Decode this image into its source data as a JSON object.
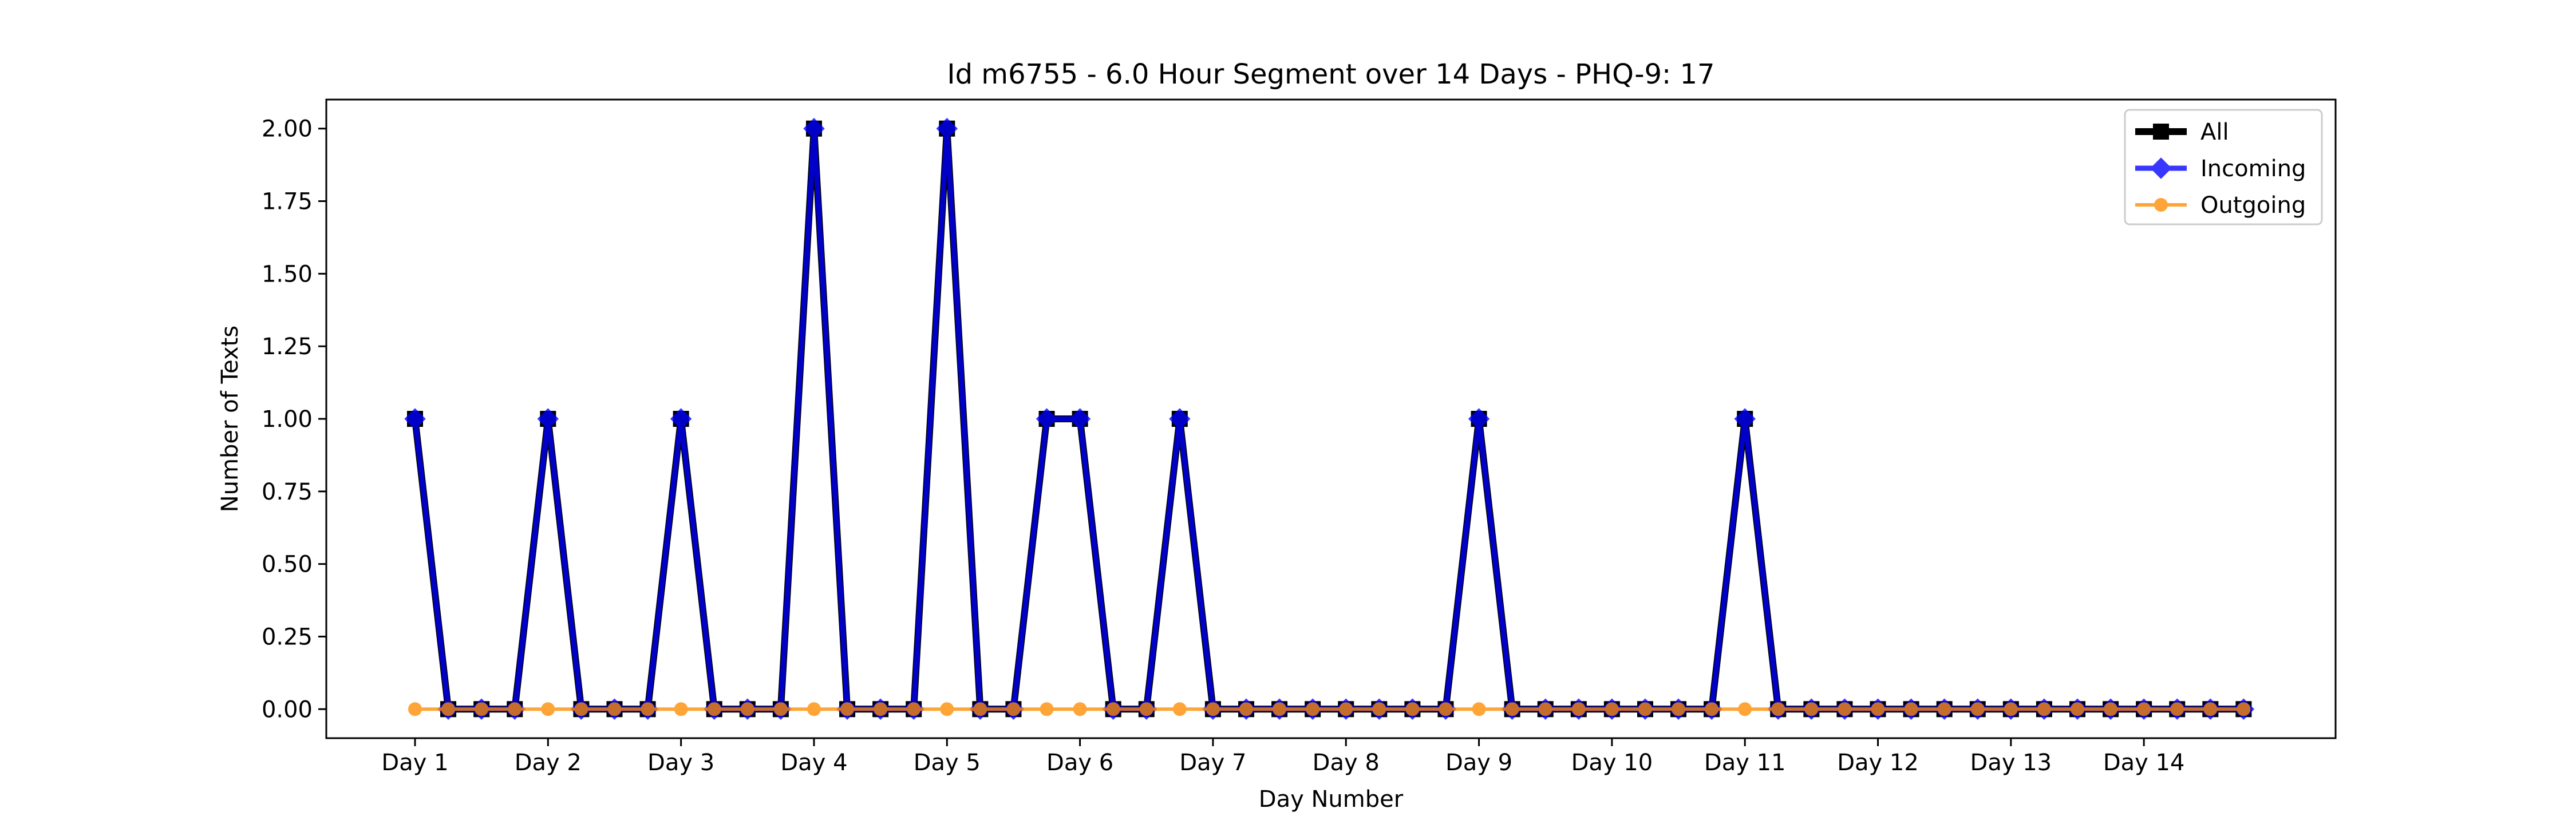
{
  "chart_data": {
    "type": "line",
    "title": "Id m6755 - 6.0 Hour Segment over 14 Days - PHQ-9: 17",
    "xlabel": "Day Number",
    "ylabel": "Number of Texts",
    "x_tick_labels": [
      "Day 1",
      "Day 2",
      "Day 3",
      "Day 4",
      "Day 5",
      "Day 6",
      "Day 7",
      "Day 8",
      "Day 9",
      "Day 10",
      "Day 11",
      "Day 12",
      "Day 13",
      "Day 14"
    ],
    "y_tick_labels": [
      "0.00",
      "0.25",
      "0.50",
      "0.75",
      "1.00",
      "1.25",
      "1.50",
      "1.75",
      "2.00"
    ],
    "y_ticks": [
      0,
      0.25,
      0.5,
      0.75,
      1.0,
      1.25,
      1.5,
      1.75,
      2.0
    ],
    "ylim": [
      -0.1,
      2.1
    ],
    "segments_per_day": 4,
    "grid": false,
    "legend_position": "top-right",
    "series": [
      {
        "name": "All",
        "color": "#000000",
        "marker": "square",
        "values": [
          1,
          0,
          0,
          0,
          1,
          0,
          0,
          0,
          1,
          0,
          0,
          0,
          2,
          0,
          0,
          0,
          2,
          0,
          0,
          1,
          1,
          0,
          0,
          1,
          0,
          0,
          0,
          0,
          0,
          0,
          0,
          0,
          1,
          0,
          0,
          0,
          0,
          0,
          0,
          0,
          1,
          0,
          0,
          0,
          0,
          0,
          0,
          0,
          0,
          0,
          0,
          0,
          0,
          0,
          0,
          0
        ]
      },
      {
        "name": "Incoming",
        "color": "#0000ff",
        "marker": "diamond",
        "values": [
          1,
          0,
          0,
          0,
          1,
          0,
          0,
          0,
          1,
          0,
          0,
          0,
          2,
          0,
          0,
          0,
          2,
          0,
          0,
          1,
          1,
          0,
          0,
          1,
          0,
          0,
          0,
          0,
          0,
          0,
          0,
          0,
          1,
          0,
          0,
          0,
          0,
          0,
          0,
          0,
          1,
          0,
          0,
          0,
          0,
          0,
          0,
          0,
          0,
          0,
          0,
          0,
          0,
          0,
          0,
          0
        ]
      },
      {
        "name": "Outgoing",
        "color": "#ff8c00",
        "marker": "circle",
        "values": [
          0,
          0,
          0,
          0,
          0,
          0,
          0,
          0,
          0,
          0,
          0,
          0,
          0,
          0,
          0,
          0,
          0,
          0,
          0,
          0,
          0,
          0,
          0,
          0,
          0,
          0,
          0,
          0,
          0,
          0,
          0,
          0,
          0,
          0,
          0,
          0,
          0,
          0,
          0,
          0,
          0,
          0,
          0,
          0,
          0,
          0,
          0,
          0,
          0,
          0,
          0,
          0,
          0,
          0,
          0,
          0
        ]
      }
    ]
  }
}
